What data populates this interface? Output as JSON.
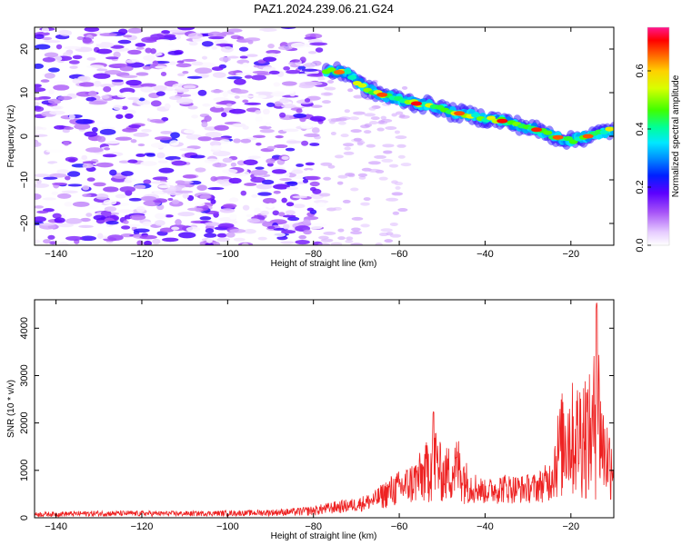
{
  "chart_data": [
    {
      "type": "heatmap",
      "title": "PAZ1.2024.239.06.21.G24",
      "xlabel": "Height of straight line (km)",
      "ylabel": "Frequency (Hz)",
      "xlim": [
        -145,
        -10
      ],
      "ylim": [
        -25,
        25
      ],
      "xticks": [
        -140,
        -120,
        -100,
        -80,
        -60,
        -40,
        -20
      ],
      "yticks": [
        -20,
        -10,
        0,
        10,
        20
      ],
      "colorbar": {
        "label": "Normalized spectral amplitude",
        "range": [
          0,
          0.75
        ],
        "ticks": [
          0.0,
          0.2,
          0.4,
          0.6
        ],
        "colormap": [
          "#ffffff",
          "#d8b4ff",
          "#8a2be2",
          "#2200ff",
          "#0080ff",
          "#00e5ff",
          "#00ff80",
          "#44ff00",
          "#d4ff00",
          "#ffff00",
          "#ff8c00",
          "#ff0000",
          "#ff1493"
        ]
      },
      "ridge": {
        "description_points": [
          {
            "x": -77,
            "y": 15
          },
          {
            "x": -72,
            "y": 14.5
          },
          {
            "x": -68,
            "y": 11
          },
          {
            "x": -64,
            "y": 9.5
          },
          {
            "x": -60,
            "y": 8.5
          },
          {
            "x": -56,
            "y": 7.5
          },
          {
            "x": -52,
            "y": 7
          },
          {
            "x": -48,
            "y": 5.5
          },
          {
            "x": -44,
            "y": 5
          },
          {
            "x": -40,
            "y": 4
          },
          {
            "x": -36,
            "y": 3.5
          },
          {
            "x": -32,
            "y": 2.5
          },
          {
            "x": -28,
            "y": 1.5
          },
          {
            "x": -24,
            "y": 0
          },
          {
            "x": -20,
            "y": -1
          },
          {
            "x": -16,
            "y": 0
          },
          {
            "x": -12,
            "y": 1
          },
          {
            "x": -10,
            "y": 1.5
          }
        ],
        "peak_amplitude": 0.75
      },
      "noise_region": {
        "x_range": [
          -145,
          -78
        ],
        "y_range": [
          -25,
          25
        ],
        "max_amplitude": 0.22
      }
    },
    {
      "type": "line",
      "title": "",
      "xlabel": "Height of straight line (km)",
      "ylabel": "SNR (10 * v/v)",
      "xlim": [
        -145,
        -10
      ],
      "ylim": [
        0,
        4600
      ],
      "xticks": [
        -140,
        -120,
        -100,
        -80,
        -60,
        -40,
        -20
      ],
      "yticks": [
        0,
        1000,
        2000,
        3000,
        4000
      ],
      "color": "#ee2222",
      "envelope": [
        {
          "x": -145,
          "y": 120
        },
        {
          "x": -130,
          "y": 150
        },
        {
          "x": -110,
          "y": 140
        },
        {
          "x": -95,
          "y": 160
        },
        {
          "x": -85,
          "y": 200
        },
        {
          "x": -80,
          "y": 250
        },
        {
          "x": -75,
          "y": 350
        },
        {
          "x": -70,
          "y": 420
        },
        {
          "x": -66,
          "y": 550
        },
        {
          "x": -62,
          "y": 900
        },
        {
          "x": -58,
          "y": 1100
        },
        {
          "x": -54,
          "y": 1500
        },
        {
          "x": -52,
          "y": 2250
        },
        {
          "x": -50,
          "y": 1400
        },
        {
          "x": -48,
          "y": 1600
        },
        {
          "x": -46,
          "y": 1750
        },
        {
          "x": -44,
          "y": 1100
        },
        {
          "x": -40,
          "y": 800
        },
        {
          "x": -36,
          "y": 950
        },
        {
          "x": -32,
          "y": 900
        },
        {
          "x": -28,
          "y": 950
        },
        {
          "x": -25,
          "y": 1200
        },
        {
          "x": -23,
          "y": 2300
        },
        {
          "x": -21,
          "y": 3100
        },
        {
          "x": -19,
          "y": 2800
        },
        {
          "x": -17,
          "y": 3300
        },
        {
          "x": -15,
          "y": 2900
        },
        {
          "x": -14,
          "y": 4600
        },
        {
          "x": -12.5,
          "y": 2500
        },
        {
          "x": -11,
          "y": 2000
        },
        {
          "x": -10,
          "y": 2100
        }
      ],
      "floor": [
        {
          "x": -145,
          "y": 20
        },
        {
          "x": -80,
          "y": 40
        },
        {
          "x": -70,
          "y": 120
        },
        {
          "x": -60,
          "y": 220
        },
        {
          "x": -50,
          "y": 300
        },
        {
          "x": -40,
          "y": 280
        },
        {
          "x": -30,
          "y": 300
        },
        {
          "x": -20,
          "y": 350
        },
        {
          "x": -10,
          "y": 300
        }
      ]
    }
  ]
}
